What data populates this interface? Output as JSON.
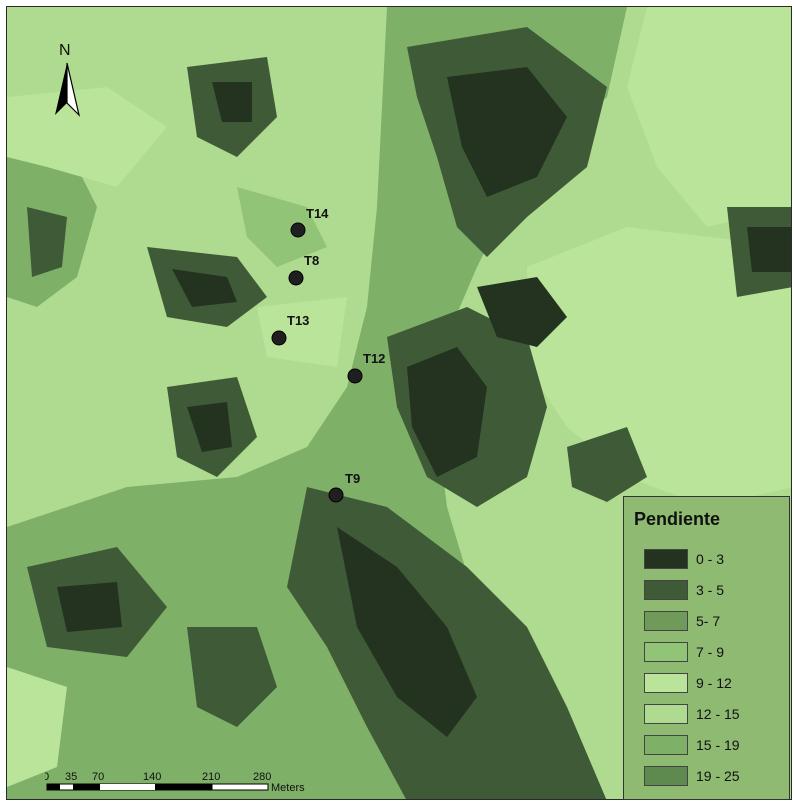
{
  "map": {
    "north_label": "N",
    "colors": {
      "c0_3": "#24331f",
      "c3_5": "#3f5a36",
      "c5_7": "#6f9a5a",
      "c7_9": "#92c478",
      "c9_12": "#b9e49a",
      "c12_15": "#aedb8f",
      "c15_19": "#7fb068",
      "c19_25": "#5f8a4f"
    },
    "points": [
      {
        "label": "T14"
      },
      {
        "label": "T8"
      },
      {
        "label": "T13"
      },
      {
        "label": "T12"
      },
      {
        "label": "T9"
      }
    ]
  },
  "legend": {
    "title": "Pendiente",
    "items": [
      {
        "label": "0 - 3",
        "color": "#24331f"
      },
      {
        "label": "3 - 5",
        "color": "#3f5a36"
      },
      {
        "label": "5- 7",
        "color": "#6f9a5a"
      },
      {
        "label": "7 - 9",
        "color": "#92c478"
      },
      {
        "label": "9 - 12",
        "color": "#b9e49a"
      },
      {
        "label": "12 - 15",
        "color": "#aedb8f"
      },
      {
        "label": "15 - 19",
        "color": "#7fb068"
      },
      {
        "label": "19 - 25",
        "color": "#5f8a4f"
      }
    ]
  },
  "scalebar": {
    "ticks": [
      "0",
      "35",
      "70",
      "140",
      "210",
      "280"
    ],
    "unit": "Meters"
  }
}
